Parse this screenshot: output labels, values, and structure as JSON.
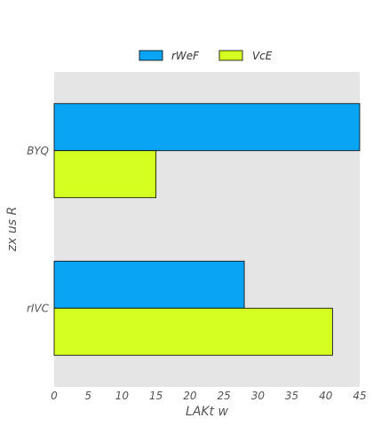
{
  "chart_data": {
    "type": "bar",
    "orientation": "horizontal",
    "categories": [
      "BYQ",
      "rIVC"
    ],
    "series": [
      {
        "name": "rWeF",
        "values": [
          45,
          28
        ],
        "color": "#0aa4f5"
      },
      {
        "name": "VcE",
        "values": [
          15,
          41
        ],
        "color": "#d4ff21"
      }
    ],
    "xlabel": "LAKt  w",
    "ylabel": "zx us R",
    "xlim": [
      0,
      45
    ],
    "xticks": [
      0,
      5,
      10,
      15,
      20,
      25,
      30,
      35,
      40,
      45
    ],
    "grid": false,
    "legend_position": "top-center",
    "background_color": "#e5e5e5"
  }
}
